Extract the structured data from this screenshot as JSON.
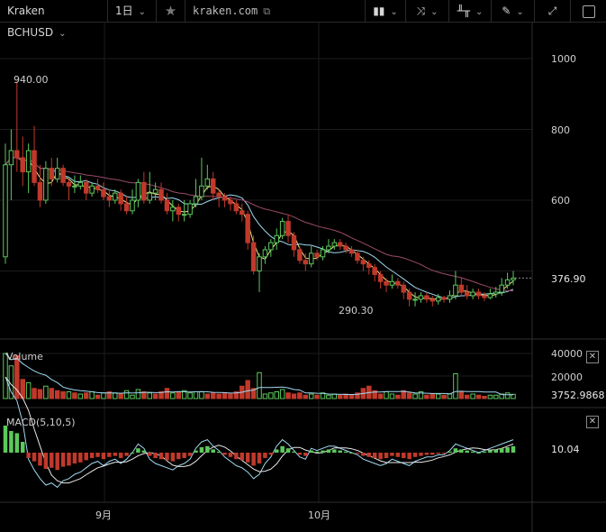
{
  "toolbar": {
    "symbol": "Kraken BCHUSD",
    "interval": "1日",
    "site": "kraken.com",
    "star_icon": "star-icon",
    "bar_type_icon": "candles-icon",
    "indicators_icon": "indicators-icon",
    "compare_icon": "compare-icon",
    "draw_icon": "pencil-icon",
    "fullscreen_icon": "fullscreen-icon",
    "screenshot_icon": "screenshot-icon"
  },
  "price_axis": {
    "ticks": [
      "1000",
      "800",
      "600"
    ],
    "current_price": "376.90",
    "high_label": "940.00",
    "low_label": "290.30"
  },
  "volume_pane": {
    "title": "Volume",
    "ticks": [
      "40000",
      "20000"
    ],
    "current_value": "3752.9868"
  },
  "macd_pane": {
    "title": "MACD(5,10,5)",
    "current_value": "10.04"
  },
  "time_axis": {
    "labels": [
      "9月",
      "10月"
    ]
  },
  "colors": {
    "up": "#5cc95c",
    "down": "#c0392b",
    "ma_fast": "#f0e68c",
    "ma_mid": "#a0d8f0",
    "ma_slow": "#9b4a6a"
  },
  "chart_data": {
    "type": "candlestick",
    "title": "",
    "xlabel": "",
    "ylabel": "",
    "ylim": [
      230,
      1080
    ],
    "x_labels": [
      "9月",
      "10月"
    ],
    "candles": [
      [
        440,
        700,
        760,
        420
      ],
      [
        700,
        740,
        800,
        600
      ],
      [
        740,
        720,
        935,
        680
      ],
      [
        720,
        680,
        780,
        640
      ],
      [
        680,
        740,
        760,
        620
      ],
      [
        740,
        650,
        810,
        640
      ],
      [
        650,
        600,
        700,
        580
      ],
      [
        600,
        690,
        710,
        590
      ],
      [
        690,
        660,
        720,
        640
      ],
      [
        660,
        690,
        720,
        650
      ],
      [
        690,
        650,
        700,
        640
      ],
      [
        650,
        640,
        660,
        600
      ],
      [
        640,
        640,
        670,
        620
      ],
      [
        640,
        650,
        670,
        630
      ],
      [
        650,
        620,
        660,
        600
      ],
      [
        620,
        640,
        650,
        610
      ],
      [
        640,
        630,
        660,
        620
      ],
      [
        630,
        610,
        650,
        600
      ],
      [
        610,
        600,
        630,
        580
      ],
      [
        600,
        620,
        630,
        590
      ],
      [
        620,
        590,
        630,
        570
      ],
      [
        590,
        570,
        610,
        560
      ],
      [
        570,
        600,
        630,
        560
      ],
      [
        600,
        650,
        660,
        580
      ],
      [
        650,
        600,
        680,
        590
      ],
      [
        600,
        620,
        680,
        590
      ],
      [
        620,
        630,
        650,
        600
      ],
      [
        630,
        600,
        650,
        590
      ],
      [
        600,
        570,
        620,
        560
      ],
      [
        570,
        580,
        600,
        540
      ],
      [
        580,
        560,
        590,
        540
      ],
      [
        560,
        560,
        600,
        540
      ],
      [
        560,
        590,
        600,
        550
      ],
      [
        590,
        610,
        660,
        580
      ],
      [
        610,
        640,
        720,
        600
      ],
      [
        640,
        660,
        700,
        630
      ],
      [
        660,
        620,
        680,
        600
      ],
      [
        620,
        610,
        630,
        580
      ],
      [
        610,
        600,
        620,
        580
      ],
      [
        600,
        590,
        610,
        570
      ],
      [
        590,
        570,
        600,
        560
      ],
      [
        570,
        560,
        590,
        540
      ],
      [
        560,
        480,
        570,
        460
      ],
      [
        480,
        400,
        500,
        390
      ],
      [
        400,
        440,
        450,
        340
      ],
      [
        440,
        460,
        470,
        420
      ],
      [
        460,
        480,
        490,
        440
      ],
      [
        480,
        500,
        520,
        460
      ],
      [
        500,
        540,
        550,
        490
      ],
      [
        540,
        500,
        560,
        480
      ],
      [
        500,
        460,
        510,
        440
      ],
      [
        460,
        430,
        470,
        420
      ],
      [
        430,
        420,
        450,
        400
      ],
      [
        420,
        450,
        470,
        410
      ],
      [
        450,
        440,
        460,
        430
      ],
      [
        440,
        460,
        470,
        430
      ],
      [
        460,
        470,
        490,
        450
      ],
      [
        470,
        480,
        490,
        460
      ],
      [
        480,
        470,
        490,
        460
      ],
      [
        470,
        460,
        480,
        450
      ],
      [
        460,
        450,
        470,
        440
      ],
      [
        450,
        430,
        460,
        420
      ],
      [
        430,
        420,
        440,
        400
      ],
      [
        420,
        410,
        430,
        390
      ],
      [
        410,
        390,
        420,
        370
      ],
      [
        390,
        370,
        400,
        350
      ],
      [
        370,
        360,
        380,
        340
      ],
      [
        360,
        370,
        390,
        350
      ],
      [
        370,
        360,
        380,
        350
      ],
      [
        360,
        340,
        370,
        320
      ],
      [
        340,
        320,
        350,
        300
      ],
      [
        320,
        320,
        340,
        300
      ],
      [
        320,
        330,
        340,
        310
      ],
      [
        330,
        320,
        340,
        310
      ],
      [
        320,
        315,
        330,
        300
      ],
      [
        315,
        325,
        335,
        305
      ],
      [
        325,
        320,
        330,
        310
      ],
      [
        320,
        330,
        345,
        310
      ],
      [
        330,
        360,
        400,
        320
      ],
      [
        360,
        340,
        380,
        330
      ],
      [
        340,
        330,
        360,
        320
      ],
      [
        330,
        340,
        350,
        320
      ],
      [
        340,
        330,
        350,
        320
      ],
      [
        330,
        325,
        340,
        315
      ],
      [
        325,
        335,
        350,
        320
      ],
      [
        335,
        340,
        355,
        325
      ],
      [
        340,
        360,
        380,
        330
      ],
      [
        360,
        375,
        395,
        350
      ],
      [
        375,
        380,
        400,
        360
      ]
    ],
    "volume": [
      [
        40000,
        1
      ],
      [
        29000,
        1
      ],
      [
        38000,
        0
      ],
      [
        17000,
        0
      ],
      [
        14000,
        1
      ],
      [
        9000,
        0
      ],
      [
        8000,
        0
      ],
      [
        11000,
        1
      ],
      [
        9000,
        0
      ],
      [
        7000,
        0
      ],
      [
        6000,
        0
      ],
      [
        6000,
        1
      ],
      [
        5000,
        0
      ],
      [
        4000,
        1
      ],
      [
        5000,
        0
      ],
      [
        6000,
        1
      ],
      [
        3000,
        0
      ],
      [
        5000,
        1
      ],
      [
        6000,
        0
      ],
      [
        5000,
        1
      ],
      [
        4000,
        0
      ],
      [
        7000,
        1
      ],
      [
        3000,
        1
      ],
      [
        8000,
        1
      ],
      [
        6000,
        0
      ],
      [
        5000,
        1
      ],
      [
        4000,
        0
      ],
      [
        6000,
        0
      ],
      [
        9000,
        0
      ],
      [
        5000,
        1
      ],
      [
        6000,
        0
      ],
      [
        7000,
        1
      ],
      [
        5000,
        1
      ],
      [
        6000,
        1
      ],
      [
        6000,
        1
      ],
      [
        4000,
        0
      ],
      [
        5000,
        0
      ],
      [
        4000,
        0
      ],
      [
        5000,
        0
      ],
      [
        4000,
        0
      ],
      [
        6000,
        0
      ],
      [
        11000,
        0
      ],
      [
        16000,
        0
      ],
      [
        9000,
        0
      ],
      [
        23000,
        1
      ],
      [
        4000,
        1
      ],
      [
        5000,
        1
      ],
      [
        6000,
        1
      ],
      [
        8000,
        1
      ],
      [
        5000,
        0
      ],
      [
        4000,
        0
      ],
      [
        5000,
        0
      ],
      [
        3000,
        0
      ],
      [
        4000,
        1
      ],
      [
        3000,
        0
      ],
      [
        5000,
        1
      ],
      [
        3000,
        1
      ],
      [
        4000,
        1
      ],
      [
        3000,
        0
      ],
      [
        4000,
        0
      ],
      [
        3000,
        0
      ],
      [
        5000,
        0
      ],
      [
        9000,
        0
      ],
      [
        11000,
        0
      ],
      [
        7000,
        0
      ],
      [
        4000,
        0
      ],
      [
        6000,
        1
      ],
      [
        4000,
        1
      ],
      [
        3000,
        0
      ],
      [
        7000,
        0
      ],
      [
        5000,
        0
      ],
      [
        4000,
        1
      ],
      [
        6000,
        1
      ],
      [
        3000,
        0
      ],
      [
        4000,
        0
      ],
      [
        4000,
        1
      ],
      [
        3000,
        0
      ],
      [
        4000,
        1
      ],
      [
        22000,
        1
      ],
      [
        6000,
        0
      ],
      [
        3000,
        0
      ],
      [
        4000,
        1
      ],
      [
        3000,
        0
      ],
      [
        2000,
        0
      ],
      [
        3000,
        1
      ],
      [
        3000,
        1
      ],
      [
        4000,
        1
      ],
      [
        5000,
        1
      ],
      [
        3753,
        1
      ]
    ],
    "macd_hist": [
      25,
      20,
      18,
      10,
      -5,
      -8,
      -12,
      -15,
      -14,
      -16,
      -13,
      -12,
      -10,
      -9,
      -7,
      -5,
      -4,
      -6,
      -4,
      -3,
      -5,
      -3,
      0,
      4,
      2,
      -3,
      -5,
      -6,
      -7,
      -8,
      -6,
      -5,
      -3,
      2,
      5,
      6,
      3,
      1,
      -2,
      -4,
      -6,
      -7,
      -9,
      -12,
      -10,
      -5,
      -2,
      3,
      6,
      4,
      1,
      -2,
      -3,
      2,
      1,
      2,
      3,
      3,
      2,
      1,
      0,
      -1,
      -3,
      -4,
      -5,
      -6,
      -5,
      -3,
      -4,
      -5,
      -6,
      -4,
      -3,
      -2,
      -2,
      -1,
      -1,
      1,
      4,
      3,
      2,
      1,
      0,
      1,
      2,
      3,
      4,
      5,
      6
    ]
  }
}
